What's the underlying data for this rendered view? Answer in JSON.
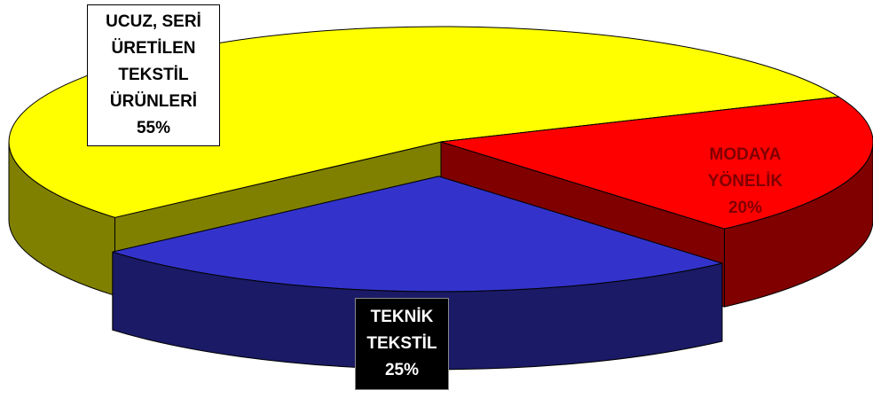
{
  "chart_data": {
    "type": "pie",
    "three_d": true,
    "categories": [
      "UCUZ, SERİ ÜRETİLEN TEKSTİL ÜRÜNLERİ",
      "MODAYA YÖNELİK",
      "TEKNİK TEKSTİL"
    ],
    "values": [
      55,
      20,
      25
    ],
    "value_labels": [
      "55%",
      "20%",
      "25%"
    ],
    "colors": [
      "#ffff00",
      "#ff0000",
      "#3333cc"
    ],
    "exploded": [
      false,
      false,
      true
    ]
  }
}
